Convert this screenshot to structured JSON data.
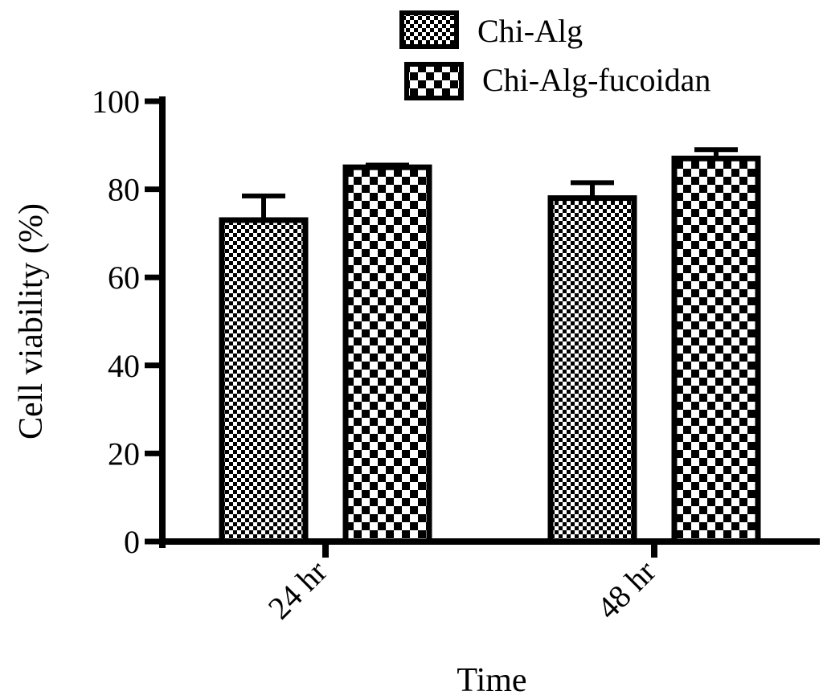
{
  "chart_data": {
    "type": "bar",
    "title": "",
    "xlabel": "Time",
    "ylabel": "Cell viability (%)",
    "ylim": [
      0,
      100
    ],
    "yticks": [
      0,
      20,
      40,
      60,
      80,
      100
    ],
    "categories": [
      "24 hr",
      "48 hr"
    ],
    "series": [
      {
        "name": "Chi-Alg",
        "values": [
          73,
          78
        ],
        "errors": [
          5.5,
          3.5
        ],
        "pattern": "fine-checker"
      },
      {
        "name": "Chi-Alg-fucoidan",
        "values": [
          85,
          87
        ],
        "errors": [
          0.5,
          2.0
        ],
        "pattern": "coarse-checker"
      }
    ],
    "legend_position": "top-right",
    "grid": false,
    "colors": {
      "ink": "#000000",
      "background": "#ffffff"
    }
  }
}
